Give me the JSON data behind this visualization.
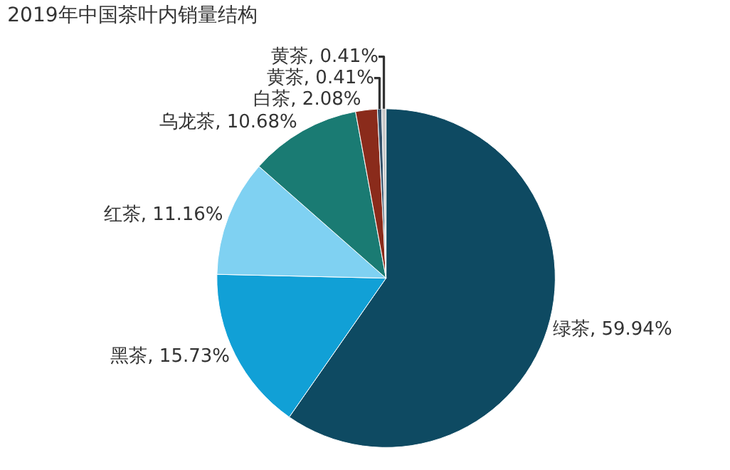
{
  "chart_data": {
    "type": "pie",
    "title": "2019年中国茶叶内销量结构",
    "categories": [
      "绿茶",
      "黑茶",
      "红茶",
      "乌龙茶",
      "白茶",
      "黄茶",
      "黄茶"
    ],
    "values": [
      59.94,
      15.73,
      11.16,
      10.68,
      2.08,
      0.41,
      0.41
    ],
    "colors": [
      "#0e4a62",
      "#11a0d6",
      "#7fd1f2",
      "#1a7b73",
      "#8a2b1b",
      "#35536b",
      "#c9c9c9"
    ],
    "value_labels": [
      "59.94%",
      "15.73%",
      "11.16%",
      "10.68%",
      "2.08%",
      "0.41%",
      "0.41%"
    ],
    "legend": false
  }
}
